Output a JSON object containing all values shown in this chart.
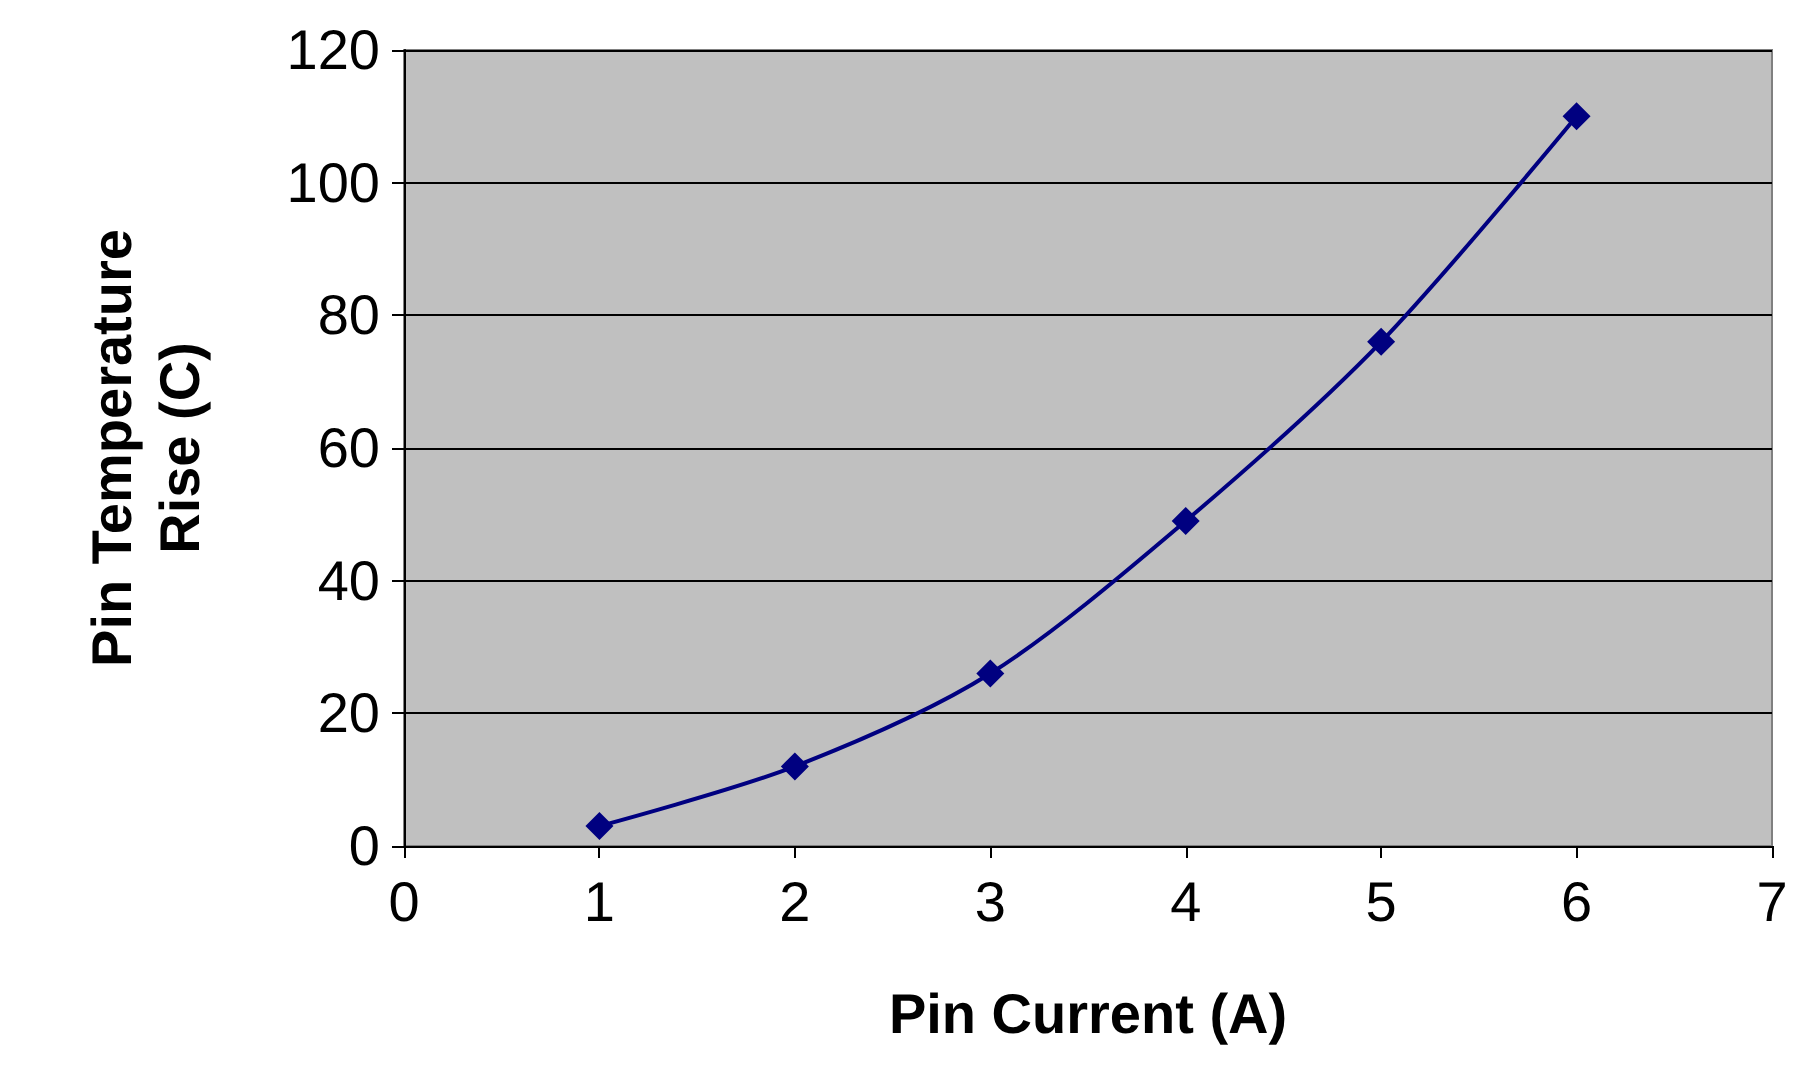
{
  "chart_data": {
    "type": "line",
    "xlabel": "Pin Current (A)",
    "ylabel": "Pin Temperature\nRise (C)",
    "x": [
      1,
      2,
      3,
      4,
      5,
      6
    ],
    "series": [
      {
        "color": "#000080",
        "values": [
          3,
          12,
          26,
          49,
          76,
          110
        ]
      }
    ],
    "xlim": [
      0,
      7
    ],
    "xticks": [
      0,
      1,
      2,
      3,
      4,
      5,
      6,
      7
    ],
    "ylim": [
      0,
      120
    ],
    "yticks": [
      0,
      20,
      40,
      60,
      80,
      100,
      120
    ],
    "grid": "y",
    "marker": "diamond",
    "line_style": "solid"
  }
}
